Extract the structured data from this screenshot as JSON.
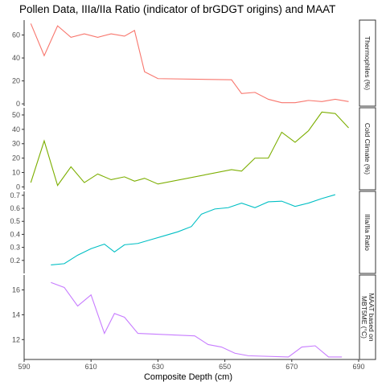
{
  "chart_data": {
    "type": "line",
    "title": "Pollen Data, IIIa/IIa Ratio (indicator of brGDGT origins) and MAAT",
    "xlabel": "Composite Depth (cm)",
    "xlim": [
      590,
      690
    ],
    "xticks": [
      590,
      610,
      630,
      650,
      670,
      690
    ],
    "panels": [
      {
        "name": "Thermophiles (%)",
        "color": "#f8766d",
        "ylim": [
          -2,
          73
        ],
        "yticks": [
          0,
          20,
          40,
          60
        ],
        "x": [
          592,
          596,
          600,
          604,
          608,
          612,
          616,
          620,
          623,
          626,
          630,
          652,
          655,
          659,
          663,
          667,
          671,
          675,
          679,
          683,
          687
        ],
        "y": [
          70,
          42,
          68,
          58,
          61,
          58,
          61,
          59,
          64,
          28,
          22,
          21,
          9,
          10,
          4,
          1,
          1,
          3,
          2,
          4,
          2
        ]
      },
      {
        "name": "Cold Climate (%)",
        "color": "#7cae00",
        "ylim": [
          -2,
          55
        ],
        "yticks": [
          0,
          10,
          20,
          30,
          40,
          50
        ],
        "x": [
          592,
          596,
          600,
          604,
          608,
          612,
          616,
          620,
          623,
          626,
          630,
          652,
          655,
          659,
          663,
          667,
          671,
          675,
          679,
          683,
          687
        ],
        "y": [
          3,
          32,
          1,
          14,
          3,
          9,
          5,
          7,
          4,
          6,
          2,
          12,
          11,
          20,
          20,
          38,
          31,
          39,
          52,
          51,
          41
        ]
      },
      {
        "name": "IIIa/IIa Ratio",
        "color": "#00bfc4",
        "ylim": [
          0.1,
          0.73
        ],
        "yticks": [
          0.2,
          0.3,
          0.4,
          0.5,
          0.6,
          0.7
        ],
        "x": [
          598,
          602,
          606,
          610,
          614,
          617,
          620,
          624,
          628,
          632,
          636,
          640,
          643,
          647,
          651,
          655,
          659,
          663,
          667,
          671,
          675,
          679,
          683,
          687
        ],
        "y": [
          0.165,
          0.175,
          0.24,
          0.29,
          0.325,
          0.265,
          0.32,
          0.33,
          0.36,
          0.39,
          0.42,
          0.46,
          0.555,
          0.595,
          0.605,
          0.64,
          0.605,
          0.65,
          0.655,
          0.615,
          0.64,
          0.675,
          0.705,
          null
        ]
      },
      {
        "name": "MAAT based on MBT5ME (°C)",
        "color": "#c77cff",
        "ylim": [
          10.4,
          17.2
        ],
        "yticks": [
          12,
          14,
          16
        ],
        "x": [
          598,
          602,
          606,
          610,
          614,
          617,
          620,
          624,
          641,
          645,
          649,
          653,
          657,
          669,
          673,
          677,
          681,
          685
        ],
        "y": [
          16.6,
          16.2,
          14.7,
          15.6,
          12.5,
          14.1,
          13.8,
          12.5,
          12.3,
          11.6,
          11.4,
          10.9,
          10.7,
          10.6,
          11.4,
          11.5,
          10.6,
          10.6
        ]
      }
    ],
    "grid": false,
    "background": "#ffffff",
    "panel_border": "#333333"
  }
}
